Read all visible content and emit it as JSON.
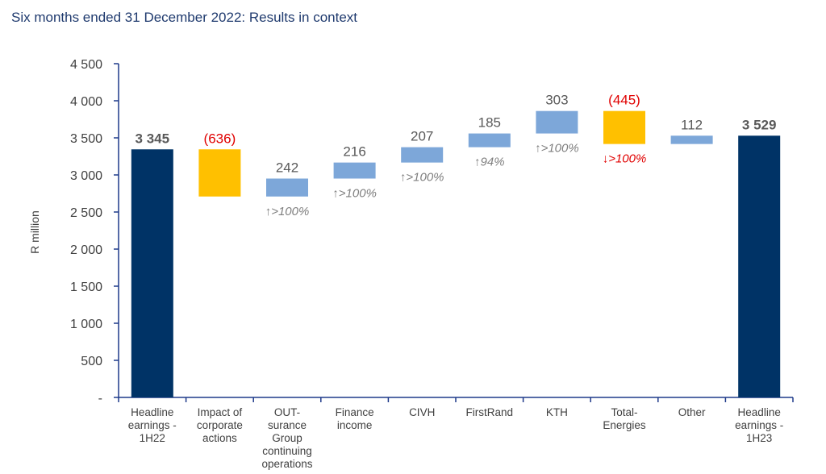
{
  "title": "Six months ended 31 December 2022: Results in context",
  "chart_data": {
    "type": "bar",
    "subtype": "waterfall",
    "ylabel": "R million",
    "ylim": [
      0,
      4500
    ],
    "yticks": [
      0,
      500,
      1000,
      1500,
      2000,
      2500,
      3000,
      3500,
      4000,
      4500
    ],
    "ytick_labels": [
      "-",
      "500",
      "1 000",
      "1 500",
      "2 000",
      "2 500",
      "3 000",
      "3 500",
      "4 000",
      "4 500"
    ],
    "grid": false,
    "colors": {
      "total": "#003366",
      "negative": "#ffc000",
      "positive": "#7da7d9",
      "negative_text": "#e00000",
      "label_text": "#595959",
      "annotation_text": "#7f7f7f"
    },
    "bars": [
      {
        "lines": [
          "Headline",
          "earnings -",
          "1H22"
        ],
        "kind": "total",
        "start": 0,
        "end": 3345,
        "label": "3 345",
        "annotation": ""
      },
      {
        "lines": [
          "Impact of",
          "corporate",
          "actions"
        ],
        "kind": "negative",
        "start": 3345,
        "end": 2709,
        "label": "(636)",
        "annotation": ""
      },
      {
        "lines": [
          "OUT-",
          "surance",
          "Group",
          "continuing",
          "operations"
        ],
        "kind": "positive",
        "start": 2709,
        "end": 2951,
        "label": "242",
        "annotation": "↑>100%"
      },
      {
        "lines": [
          "Finance",
          "income"
        ],
        "kind": "positive",
        "start": 2951,
        "end": 3167,
        "label": "216",
        "annotation": "↑>100%"
      },
      {
        "lines": [
          "CIVH"
        ],
        "kind": "positive",
        "start": 3167,
        "end": 3374,
        "label": "207",
        "annotation": "↑>100%"
      },
      {
        "lines": [
          "FirstRand"
        ],
        "kind": "positive",
        "start": 3374,
        "end": 3559,
        "label": "185",
        "annotation": "↑94%"
      },
      {
        "lines": [
          "KTH"
        ],
        "kind": "positive",
        "start": 3559,
        "end": 3862,
        "label": "303",
        "annotation": "↑>100%"
      },
      {
        "lines": [
          "Total-",
          "Energies"
        ],
        "kind": "negative",
        "start": 3862,
        "end": 3417,
        "label": "(445)",
        "annotation": "↓>100%"
      },
      {
        "lines": [
          "Other"
        ],
        "kind": "positive",
        "start": 3417,
        "end": 3529,
        "label": "112",
        "annotation": ""
      },
      {
        "lines": [
          "Headline",
          "earnings -",
          "1H23"
        ],
        "kind": "total",
        "start": 0,
        "end": 3529,
        "label": "3 529",
        "annotation": ""
      }
    ]
  }
}
